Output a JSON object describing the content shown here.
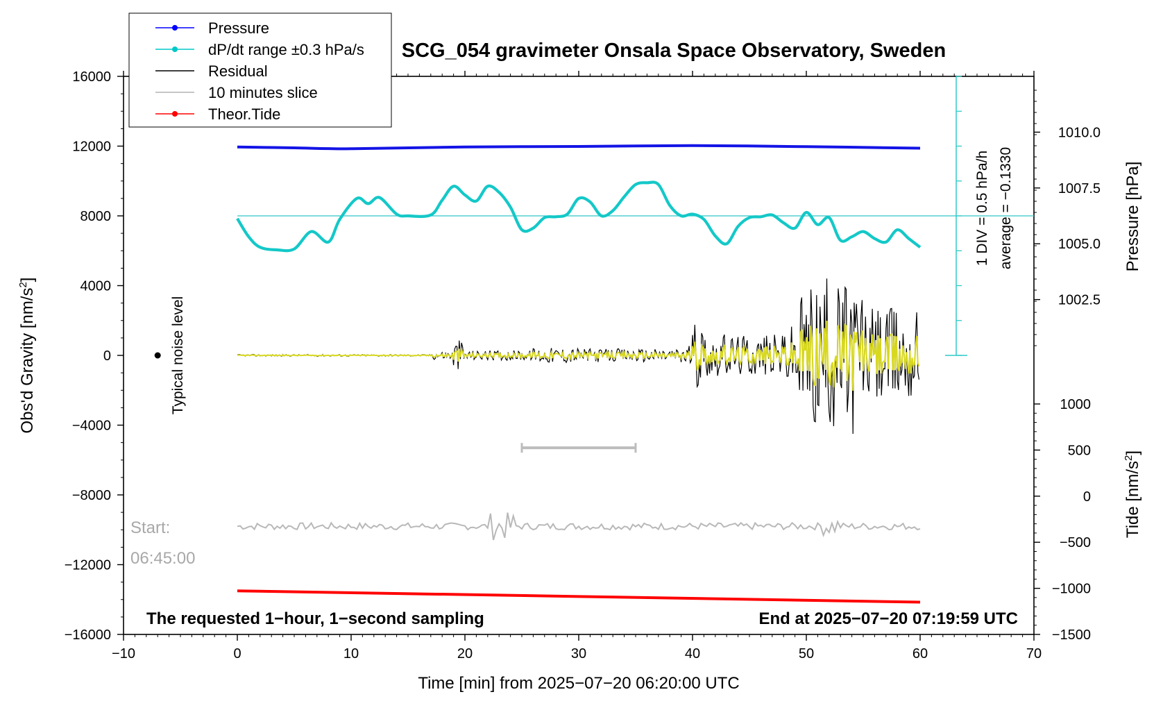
{
  "chart_data": {
    "type": "line",
    "title": "SCG_054 gravimeter Onsala Space Observatory, Sweden",
    "xlabel": "Time [min] from 2025−07−20 06:20:00 UTC",
    "xlim": [
      -10,
      70
    ],
    "xticks": [
      "−10",
      "0",
      "10",
      "20",
      "30",
      "40",
      "50",
      "60",
      "70"
    ],
    "xtick_values": [
      -10,
      0,
      10,
      20,
      30,
      40,
      50,
      60,
      70
    ],
    "left_axis": {
      "label": "Obs'd Gravity [nm/s",
      "label_sup": "2",
      "label_end": "]",
      "ylim": [
        -16000,
        16000
      ],
      "ticks": [
        "16000",
        "12000",
        "8000",
        "4000",
        "0",
        "−4000",
        "−8000",
        "−12000",
        "−16000"
      ],
      "tick_values": [
        16000,
        12000,
        8000,
        4000,
        0,
        -4000,
        -8000,
        -12000,
        -16000
      ]
    },
    "pressure_axis": {
      "label": "Pressure [hPa]",
      "ticks": [
        "1010.0",
        "1007.5",
        "1005.0",
        "1002.5"
      ],
      "tick_values": [
        1010.0,
        1007.5,
        1005.0,
        1002.5
      ],
      "gravity_equiv": [
        12800,
        9600,
        6400,
        3200
      ]
    },
    "tide_axis": {
      "label": "Tide [nm/s",
      "label_sup": "2",
      "label_end": "]",
      "ticks": [
        "1000",
        "500",
        "0",
        "−500",
        "−1000",
        "−1500"
      ],
      "tick_values": [
        1000,
        500,
        0,
        -500,
        -1000,
        -1500
      ]
    },
    "legend": [
      {
        "label": "Pressure",
        "color": "#0000ff",
        "style": "line-dot"
      },
      {
        "label": "dP/dt range ±0.3 hPa/s",
        "color": "#00c8c8",
        "style": "line-dot"
      },
      {
        "label": "Residual",
        "color": "#000000",
        "style": "line"
      },
      {
        "label": "10 minutes slice",
        "color": "#b4b4b4",
        "style": "line"
      },
      {
        "label": "Theor.Tide",
        "color": "#ff0000",
        "style": "line-dot"
      }
    ],
    "series": [
      {
        "name": "Pressure",
        "color": "#1414e6",
        "x": [
          0,
          5,
          10,
          20,
          30,
          40,
          50,
          60
        ],
        "y": [
          11950,
          11900,
          11850,
          11950,
          11980,
          12030,
          11970,
          11880
        ]
      },
      {
        "name": "dP/dt",
        "color": "#14c8c8",
        "x": [
          0,
          1,
          2,
          3.5,
          5,
          6.5,
          8,
          9,
          10.5,
          11.5,
          12.5,
          14,
          15,
          17,
          18,
          19,
          20,
          21,
          22,
          23,
          24,
          25,
          26,
          27,
          28,
          29,
          30,
          31,
          32,
          33,
          34,
          35,
          36,
          37,
          38,
          39,
          40,
          41,
          42,
          43,
          44,
          45,
          46,
          47,
          48,
          49,
          50,
          51,
          52,
          53,
          54,
          55,
          56,
          57,
          58,
          59,
          60
        ],
        "y": [
          7850,
          6800,
          6200,
          6050,
          6100,
          7100,
          6500,
          7800,
          9000,
          8700,
          9050,
          8100,
          8000,
          8050,
          8900,
          9700,
          9200,
          8850,
          9700,
          9350,
          8500,
          7200,
          7300,
          7900,
          7950,
          8100,
          9000,
          8800,
          8000,
          8300,
          9100,
          9800,
          9900,
          9800,
          8600,
          8000,
          8100,
          7800,
          6850,
          6400,
          7400,
          7900,
          7950,
          8050,
          7600,
          7300,
          8200,
          7500,
          7900,
          6600,
          6800,
          7100,
          6700,
          6500,
          7200,
          6700,
          6200
        ]
      },
      {
        "name": "Theor.Tide",
        "color": "#ff0000",
        "x": [
          0,
          60
        ],
        "y": [
          -13500,
          -14150
        ]
      }
    ],
    "dpdt_reference_line": 8000,
    "dpdt_scale": {
      "label": "1 DIV = 0.5 hPa/h",
      "average": "average = −0.1330",
      "divisions": 8
    },
    "slice_bar": {
      "x_start": 25,
      "x_end": 35,
      "y": -5300
    },
    "noise_marker": {
      "x": -7,
      "y": 0
    },
    "noise_label": "Typical noise level",
    "start_label_1": "Start:",
    "start_label_2": "06:45:00",
    "bottom_left_note": "The requested 1−hour, 1−second sampling",
    "bottom_right_note": "End at 2025−07−20 07:19:59 UTC"
  }
}
